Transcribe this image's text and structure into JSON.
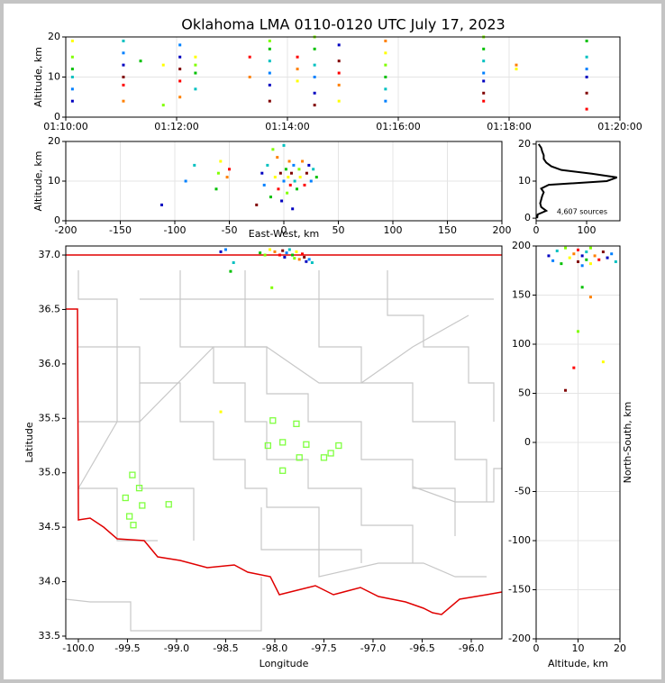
{
  "chart_data": [
    {
      "type": "scatter",
      "title": "Oklahoma LMA 0110-0120 UTC July 17, 2023",
      "ylabel": "Altitude, km",
      "xlim": [
        10,
        20
      ],
      "xticks": [
        {
          "value": 10,
          "label": "01:10:00"
        },
        {
          "value": 12,
          "label": "01:12:00"
        },
        {
          "value": 14,
          "label": "01:14:00"
        },
        {
          "value": 16,
          "label": "01:16:00"
        },
        {
          "value": 18,
          "label": "01:18:00"
        },
        {
          "value": 20,
          "label": "01:20:00"
        }
      ],
      "ylim": [
        0,
        20
      ],
      "yticks": [
        0,
        10,
        20
      ],
      "grid": true,
      "colormap": [
        "#0000c0",
        "#0080ff",
        "#00c0c0",
        "#00c000",
        "#80ff00",
        "#ffff00",
        "#ff8000",
        "#ff0000",
        "#800000"
      ],
      "x": [
        10.12,
        10.12,
        10.12,
        10.12,
        10.12,
        10.12,
        11.04,
        11.04,
        11.04,
        11.04,
        11.04,
        11.04,
        11.35,
        11.76,
        11.76,
        12.06,
        12.06,
        12.06,
        12.06,
        12.06,
        12.34,
        12.34,
        12.34,
        12.34,
        13.32,
        13.32,
        13.68,
        13.68,
        13.68,
        13.68,
        13.68,
        13.68,
        14.18,
        14.18,
        14.18,
        14.49,
        14.49,
        14.49,
        14.49,
        14.49,
        14.49,
        14.93,
        14.93,
        14.93,
        14.93,
        14.93,
        15.77,
        15.77,
        15.77,
        15.77,
        15.77,
        15.77,
        17.54,
        17.54,
        17.54,
        17.54,
        17.54,
        17.54,
        17.54,
        18.13,
        18.13,
        19.4,
        19.4,
        19.4,
        19.4,
        19.4,
        19.4
      ],
      "values": [
        4,
        7,
        10,
        12,
        15,
        19,
        4,
        8,
        10,
        13,
        16,
        19,
        14,
        3,
        13,
        5,
        9,
        12,
        15,
        18,
        7,
        11,
        13,
        15,
        10,
        15,
        4,
        8,
        11,
        14,
        17,
        19,
        9,
        12,
        15,
        3,
        6,
        10,
        13,
        17,
        20,
        4,
        8,
        11,
        14,
        18,
        4,
        7,
        10,
        13,
        16,
        19,
        4,
        6,
        9,
        11,
        14,
        17,
        20,
        12,
        13,
        2,
        6,
        10,
        12,
        15,
        19
      ]
    },
    {
      "type": "scatter",
      "xlabel": "East-West, km",
      "ylabel": "Altitude, km",
      "xlim": [
        -200,
        200
      ],
      "xticks": [
        -200,
        -150,
        -100,
        -50,
        0,
        50,
        100,
        150,
        200
      ],
      "ylim": [
        0,
        20
      ],
      "yticks": [
        0,
        10,
        20
      ],
      "grid": true,
      "colormap": [
        "#0000c0",
        "#0080ff",
        "#00c0c0",
        "#00c000",
        "#80ff00",
        "#ffff00",
        "#ff8000",
        "#ff0000",
        "#800000"
      ],
      "x": [
        -112,
        -90,
        -82,
        -62,
        -60,
        -58,
        -52,
        -50,
        -25,
        -20,
        -18,
        -15,
        -12,
        -10,
        -8,
        -6,
        -5,
        -3,
        -2,
        0,
        0,
        2,
        3,
        4,
        5,
        6,
        7,
        8,
        9,
        10,
        12,
        14,
        15,
        17,
        19,
        21,
        23,
        25,
        27,
        30
      ],
      "values": [
        4,
        10,
        14,
        8,
        12,
        15,
        11,
        13,
        4,
        12,
        9,
        14,
        6,
        18,
        11,
        16,
        8,
        12,
        5,
        10,
        19,
        13,
        7,
        11,
        15,
        9,
        12,
        3,
        14,
        10,
        8,
        13,
        11,
        15,
        9,
        12,
        14,
        10,
        13,
        11
      ]
    },
    {
      "type": "line",
      "annotation": "4,607 sources",
      "xlim": [
        0,
        166
      ],
      "xticks": [
        0,
        100
      ],
      "ylim": [
        -0.7,
        20.7
      ],
      "yticks": [
        0,
        10,
        20
      ],
      "color": "#000000",
      "x": [
        2,
        3,
        20,
        10,
        8,
        10,
        12,
        15,
        10,
        25,
        140,
        160,
        110,
        50,
        30,
        20,
        15,
        15,
        12,
        10,
        5
      ],
      "values": [
        0,
        1,
        2,
        3,
        4,
        5,
        6,
        7,
        8,
        9,
        10,
        11,
        12,
        13,
        14,
        15,
        16,
        17,
        18,
        19,
        20
      ]
    },
    {
      "type": "scatter",
      "xlabel": "Longitude",
      "ylabel": "Latitude",
      "xlim": [
        -100.128,
        -95.688
      ],
      "xticks": [
        {
          "value": -100,
          "label": "-100.0"
        },
        {
          "value": -99.5,
          "label": "-99.5"
        },
        {
          "value": -99,
          "label": "-99.0"
        },
        {
          "value": -98.5,
          "label": "-98.5"
        },
        {
          "value": -98,
          "label": "-98.0"
        },
        {
          "value": -97.5,
          "label": "-97.5"
        },
        {
          "value": -97,
          "label": "-97.0"
        },
        {
          "value": -96.5,
          "label": "-96.5"
        },
        {
          "value": -96,
          "label": "-96.0"
        }
      ],
      "ylim": [
        33.475,
        37.083
      ],
      "yticks": [
        {
          "value": 33.5,
          "label": "33.5"
        },
        {
          "value": 34,
          "label": "34.0"
        },
        {
          "value": 34.5,
          "label": "34.5"
        },
        {
          "value": 35,
          "label": "35.0"
        },
        {
          "value": 35.5,
          "label": "35.5"
        },
        {
          "value": 36,
          "label": "36.0"
        },
        {
          "value": 36.5,
          "label": "36.5"
        },
        {
          "value": 37,
          "label": "37.0"
        }
      ],
      "grid": false,
      "colormap": [
        "#0000c0",
        "#0080ff",
        "#00c0c0",
        "#00c000",
        "#80ff00",
        "#ffff00",
        "#ff8000",
        "#ff0000",
        "#800000"
      ],
      "x": [
        -98.55,
        -98.5,
        -98.42,
        -98.15,
        -98.1,
        -98.05,
        -98.0,
        -97.95,
        -97.92,
        -97.9,
        -97.88,
        -97.85,
        -97.82,
        -97.8,
        -97.78,
        -97.75,
        -97.72,
        -97.7,
        -97.68,
        -97.65,
        -97.62,
        -98.45,
        -98.03,
        -98.55
      ],
      "values": [
        37.03,
        37.05,
        36.93,
        37.02,
        37.0,
        37.05,
        37.03,
        37.0,
        37.04,
        36.98,
        37.02,
        37.05,
        37.0,
        36.97,
        37.03,
        36.96,
        37.01,
        36.98,
        36.94,
        36.96,
        36.93,
        36.85,
        36.7,
        35.56
      ],
      "stations": {
        "color": "#80ff40",
        "x": [
          -99.45,
          -99.38,
          -99.52,
          -99.35,
          -99.48,
          -99.44,
          -99.08,
          -98.02,
          -97.78,
          -98.07,
          -97.92,
          -97.68,
          -97.75,
          -97.92,
          -97.5,
          -97.43,
          -97.35
        ],
        "values": [
          34.98,
          34.86,
          34.77,
          34.7,
          34.6,
          34.52,
          34.71,
          35.48,
          35.45,
          35.25,
          35.28,
          35.26,
          35.14,
          35.02,
          35.14,
          35.18,
          35.25
        ]
      }
    },
    {
      "type": "scatter",
      "xlabel": "Altitude, km",
      "ylabel": "North-South, km",
      "xlim": [
        0,
        20
      ],
      "xticks": [
        0,
        10,
        20
      ],
      "ylim": [
        -200,
        200
      ],
      "yticks": [
        -200,
        -150,
        -100,
        -50,
        0,
        50,
        100,
        150,
        200
      ],
      "grid": true,
      "colormap": [
        "#0000c0",
        "#0080ff",
        "#00c0c0",
        "#00c000",
        "#80ff00",
        "#ffff00",
        "#ff8000",
        "#ff0000",
        "#800000"
      ],
      "x": [
        3,
        4,
        5,
        6,
        7,
        8,
        9,
        10,
        10,
        11,
        11,
        12,
        12,
        13,
        13,
        14,
        15,
        16,
        17,
        18,
        19,
        11,
        10,
        16,
        13,
        9,
        7
      ],
      "values": [
        190,
        185,
        195,
        182,
        198,
        188,
        192,
        196,
        184,
        190,
        180,
        194,
        186,
        198,
        182,
        190,
        186,
        194,
        188,
        192,
        184,
        158,
        113,
        82,
        148,
        76,
        53
      ]
    }
  ]
}
